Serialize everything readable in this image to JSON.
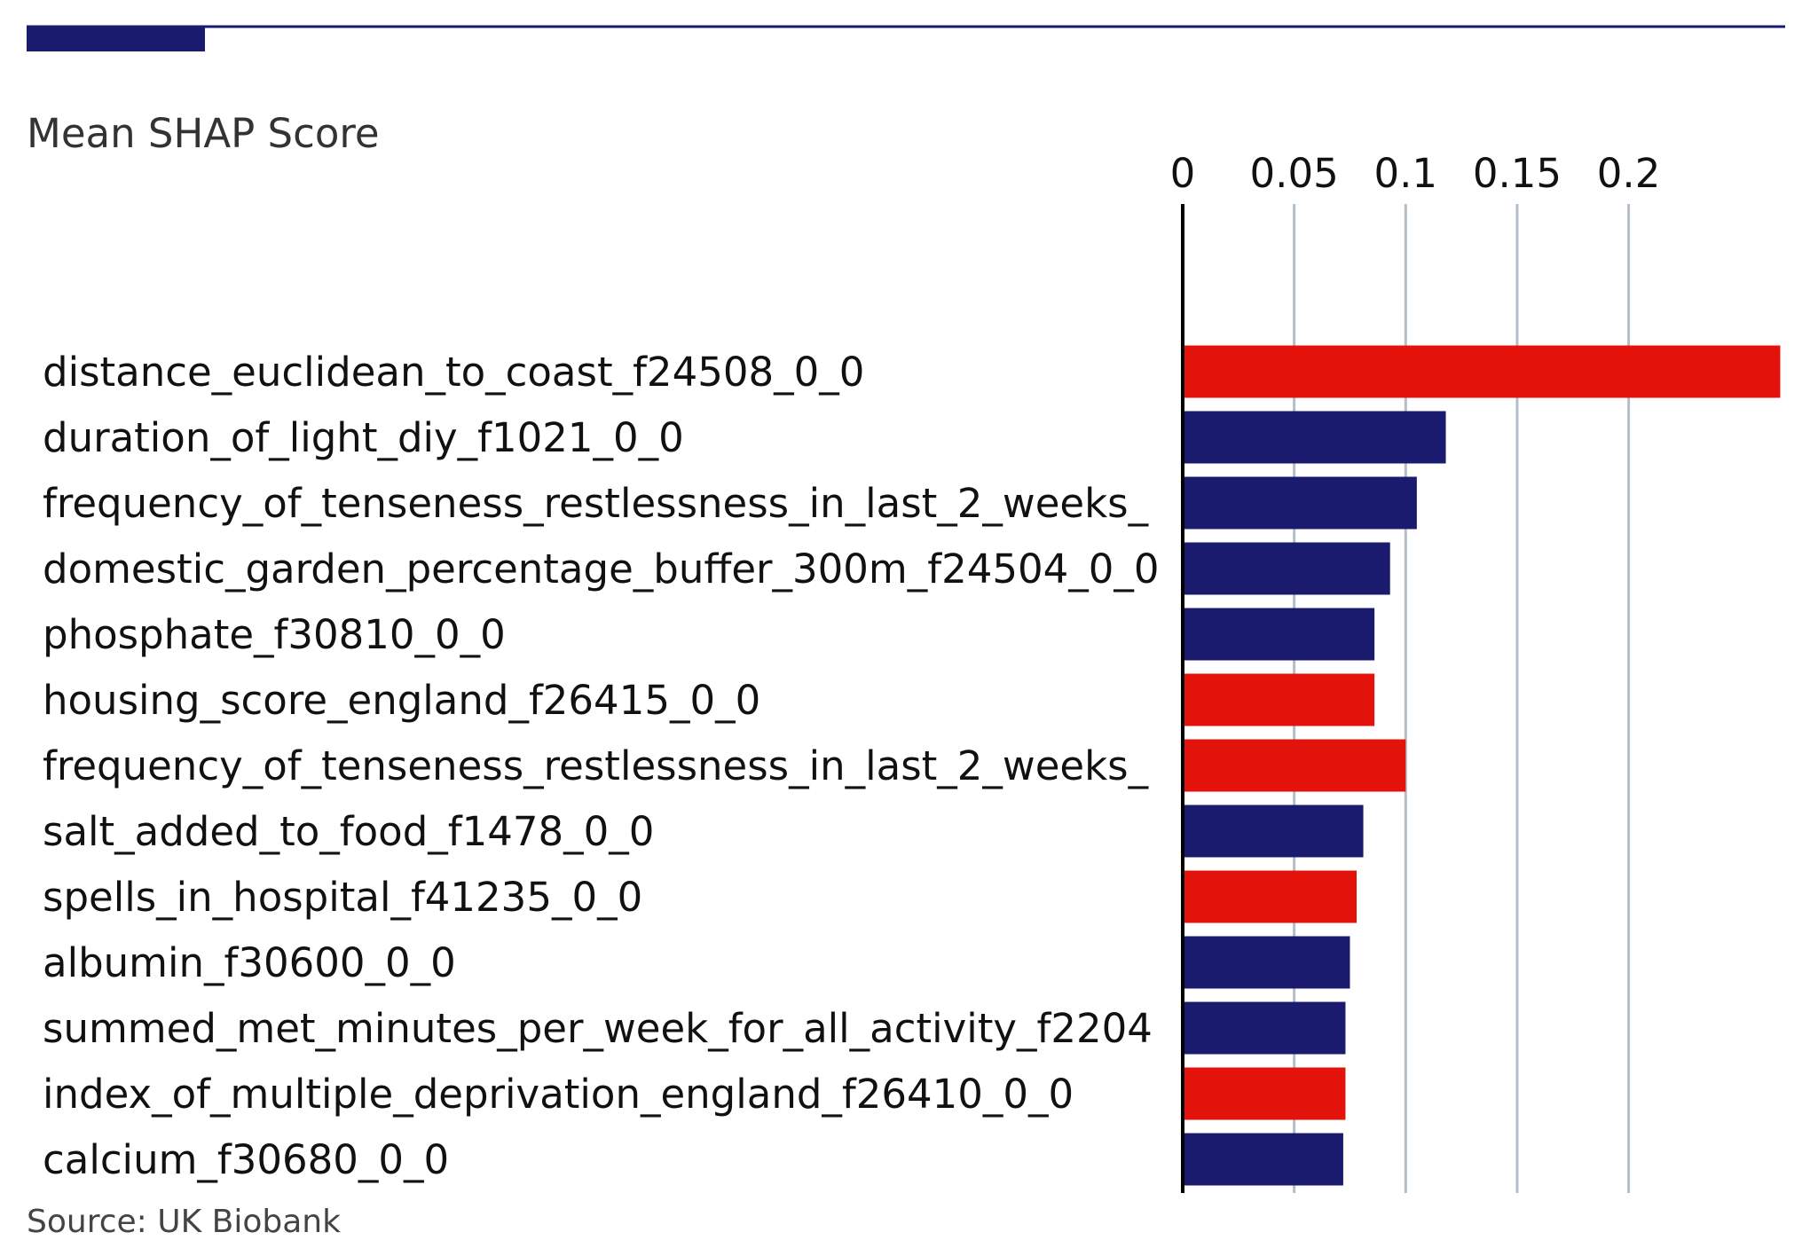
{
  "colors": {
    "brand": "#1a1a6e",
    "positive": "#e3120b",
    "negative": "#1a1a6e",
    "grid": "#b4bec8",
    "axis": "#000000"
  },
  "chart_data": {
    "type": "bar",
    "orientation": "horizontal",
    "title": "",
    "xlabel": "Mean SHAP Score",
    "ylabel": "",
    "xlim": [
      0,
      0.27
    ],
    "xticks": [
      0,
      0.05,
      0.1,
      0.15,
      0.2
    ],
    "xtick_labels": [
      "0",
      "0.05",
      "0.1",
      "0.15",
      "0.2"
    ],
    "grid": true,
    "x_axis_position": "top",
    "categories": [
      "distance_euclidean_to_coast_f24508_0_0",
      "duration_of_light_diy_f1021_0_0",
      "frequency_of_tenseness_restlessness_in_last_2_weeks_",
      "domestic_garden_percentage_buffer_300m_f24504_0_0",
      "phosphate_f30810_0_0",
      "housing_score_england_f26415_0_0",
      "frequency_of_tenseness_restlessness_in_last_2_weeks_",
      "salt_added_to_food_f1478_0_0",
      "spells_in_hospital_f41235_0_0",
      "albumin_f30600_0_0",
      "summed_met_minutes_per_week_for_all_activity_f2204",
      "index_of_multiple_deprivation_england_f26410_0_0",
      "calcium_f30680_0_0"
    ],
    "values": [
      0.268,
      0.118,
      0.105,
      0.093,
      0.086,
      0.086,
      0.1,
      0.081,
      0.078,
      0.075,
      0.073,
      0.073,
      0.072
    ],
    "bar_colors": [
      "#e3120b",
      "#1a1a6e",
      "#1a1a6e",
      "#1a1a6e",
      "#1a1a6e",
      "#e3120b",
      "#e3120b",
      "#1a1a6e",
      "#e3120b",
      "#1a1a6e",
      "#1a1a6e",
      "#e3120b",
      "#1a1a6e"
    ],
    "source": "Source: UK Biobank"
  }
}
